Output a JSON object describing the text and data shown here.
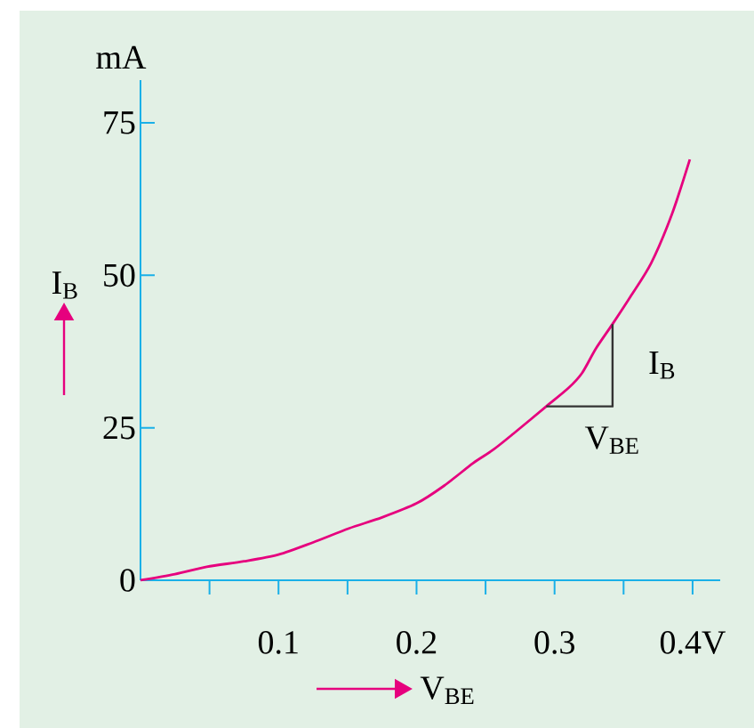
{
  "chart_data": {
    "type": "line",
    "xlabel": "V$_{BE}$",
    "ylabel": "I$_{B}$",
    "xlim": [
      0,
      0.42
    ],
    "ylim": [
      0,
      82
    ],
    "xticks": [
      {
        "value": 0.05,
        "label": null
      },
      0.1,
      {
        "value": 0.15,
        "label": null
      },
      0.2,
      {
        "value": 0.25,
        "label": null
      },
      0.3,
      {
        "value": 0.35,
        "label": null
      },
      {
        "value": 0.4,
        "label": "0.4V"
      }
    ],
    "yticks": [
      0,
      25,
      50,
      75
    ],
    "annotations": [
      "mA",
      "I$_{B}$",
      "V$_{BE}$"
    ],
    "series": [
      {
        "color": "#e6007e",
        "x": [
          0,
          0.025,
          0.048,
          0.075,
          0.1,
          0.125,
          0.151,
          0.175,
          0.2,
          0.22,
          0.241,
          0.255,
          0.27,
          0.294,
          0.31,
          0.32,
          0.33,
          0.342,
          0.355,
          0.37,
          0.385,
          0.398
        ],
        "values": [
          0,
          1.0,
          2.2,
          3.1,
          4.2,
          6.2,
          8.5,
          10.3,
          12.6,
          15.5,
          19.2,
          21.3,
          24,
          28.5,
          31.5,
          34,
          38,
          42,
          46.5,
          52,
          60,
          69
        ]
      },
      {
        "color": "#333333",
        "x": [
          0.294,
          0.342,
          0.342
        ],
        "values": [
          28.5,
          28.5,
          42
        ]
      }
    ]
  }
}
